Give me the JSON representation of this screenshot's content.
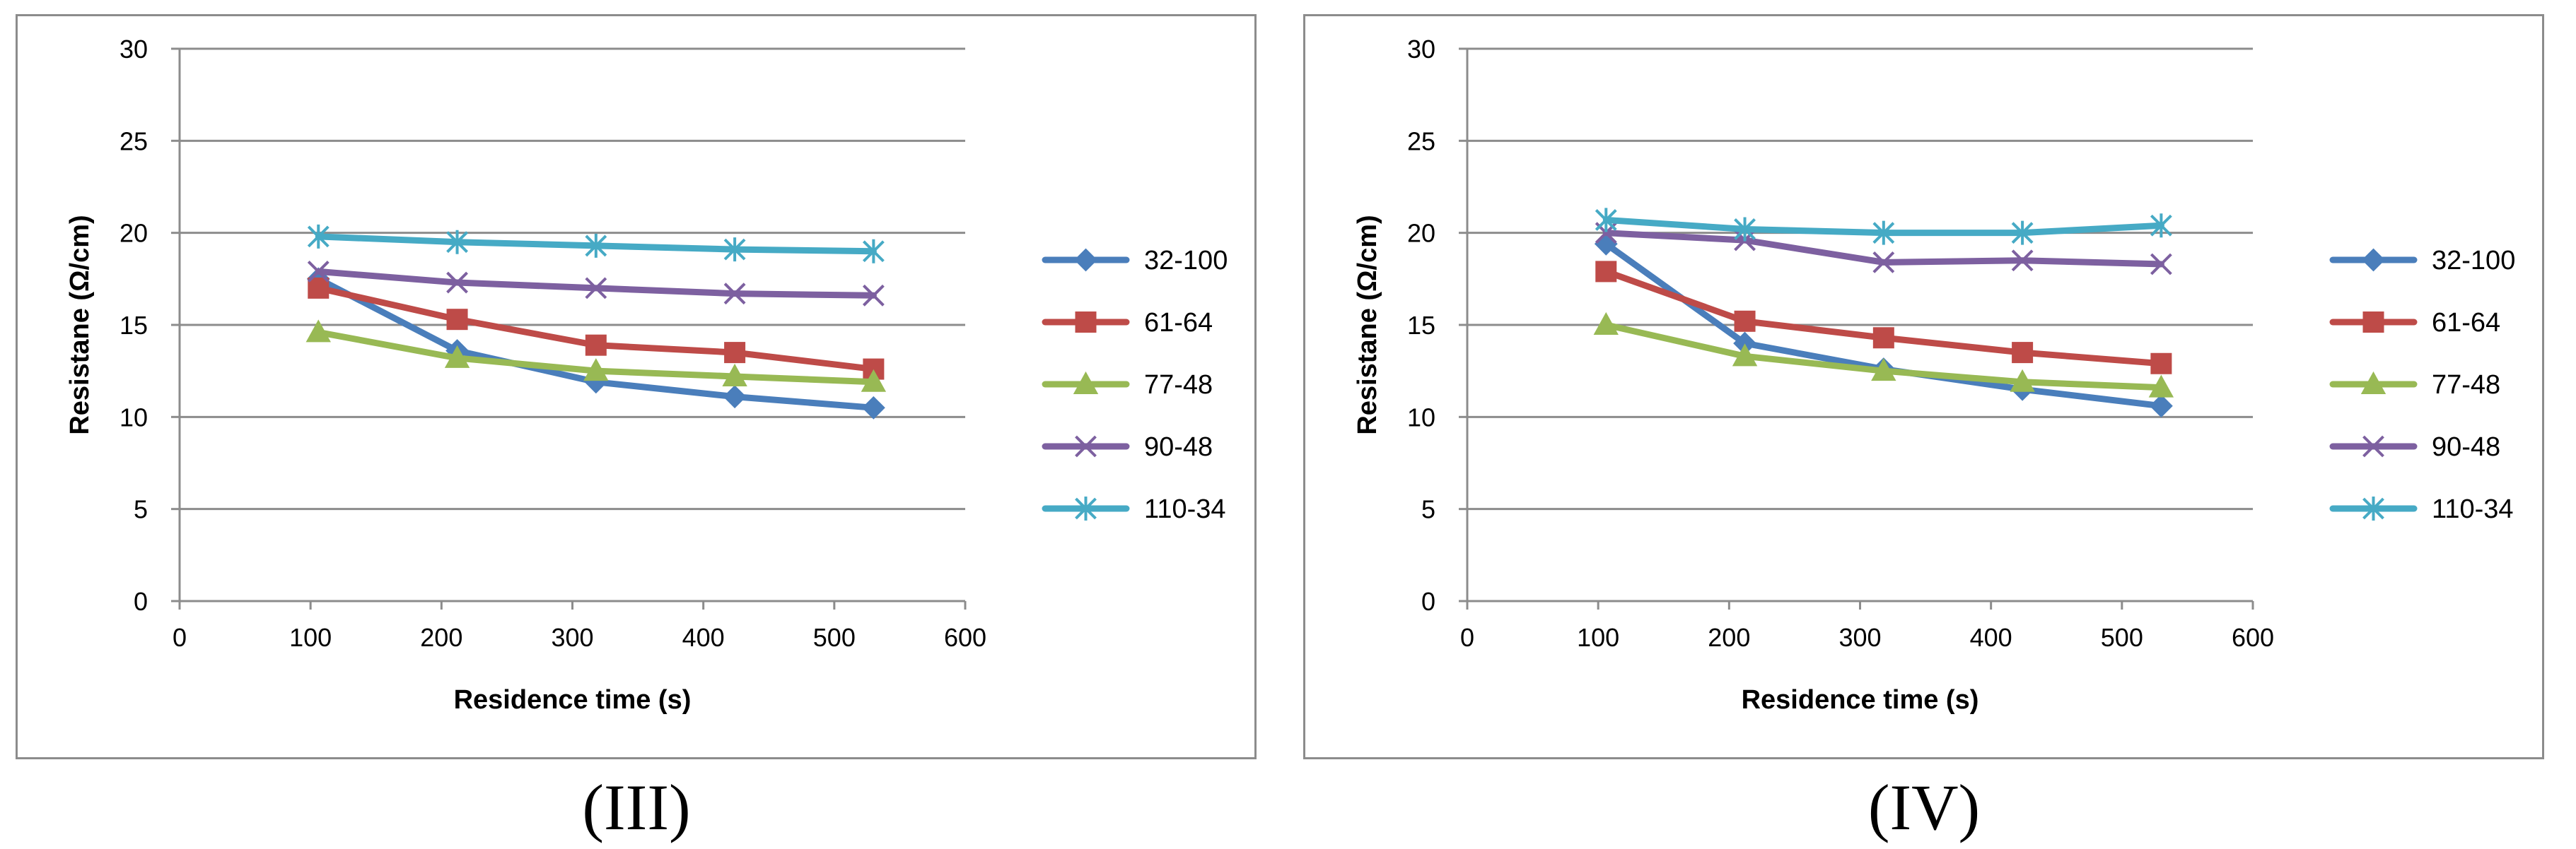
{
  "chart_data": [
    {
      "type": "line",
      "panel_label": "(III)",
      "xlabel": "Residence time (s)",
      "ylabel": "Resistane (Ω/cm)",
      "xlim": [
        0,
        600
      ],
      "ylim": [
        0,
        30
      ],
      "xticks": [
        0,
        100,
        200,
        300,
        400,
        500,
        600
      ],
      "yticks": [
        0,
        5,
        10,
        15,
        20,
        25,
        30
      ],
      "grid": "horizontal",
      "legend": "right",
      "x": [
        106,
        212,
        318,
        424,
        530
      ],
      "series": [
        {
          "name": "32-100",
          "color": "#4a7ebb",
          "marker": "diamond",
          "values": [
            17.5,
            13.6,
            11.9,
            11.1,
            10.5
          ]
        },
        {
          "name": "61-64",
          "color": "#be4b48",
          "marker": "square",
          "values": [
            17.0,
            15.3,
            13.9,
            13.5,
            12.6
          ]
        },
        {
          "name": "77-48",
          "color": "#98b954",
          "marker": "triangle",
          "values": [
            14.6,
            13.2,
            12.5,
            12.2,
            11.9
          ]
        },
        {
          "name": "90-48",
          "color": "#7d60a0",
          "marker": "x",
          "values": [
            17.9,
            17.3,
            17.0,
            16.7,
            16.6
          ]
        },
        {
          "name": "110-34",
          "color": "#46aac5",
          "marker": "star",
          "values": [
            19.8,
            19.5,
            19.3,
            19.1,
            19.0
          ]
        }
      ]
    },
    {
      "type": "line",
      "panel_label": "(IV)",
      "xlabel": "Residence time (s)",
      "ylabel": "Resistane (Ω/cm)",
      "xlim": [
        0,
        600
      ],
      "ylim": [
        0,
        30
      ],
      "xticks": [
        0,
        100,
        200,
        300,
        400,
        500,
        600
      ],
      "yticks": [
        0,
        5,
        10,
        15,
        20,
        25,
        30
      ],
      "grid": "horizontal",
      "legend": "right",
      "x": [
        106,
        212,
        318,
        424,
        530
      ],
      "series": [
        {
          "name": "32-100",
          "color": "#4a7ebb",
          "marker": "diamond",
          "values": [
            19.4,
            14.0,
            12.6,
            11.5,
            10.6
          ]
        },
        {
          "name": "61-64",
          "color": "#be4b48",
          "marker": "square",
          "values": [
            17.9,
            15.2,
            14.3,
            13.5,
            12.9
          ]
        },
        {
          "name": "77-48",
          "color": "#98b954",
          "marker": "triangle",
          "values": [
            15.0,
            13.3,
            12.5,
            11.9,
            11.6
          ]
        },
        {
          "name": "90-48",
          "color": "#7d60a0",
          "marker": "x",
          "values": [
            20.0,
            19.6,
            18.4,
            18.5,
            18.3
          ]
        },
        {
          "name": "110-34",
          "color": "#46aac5",
          "marker": "star",
          "values": [
            20.7,
            20.2,
            20.0,
            20.0,
            20.4
          ]
        }
      ]
    }
  ]
}
